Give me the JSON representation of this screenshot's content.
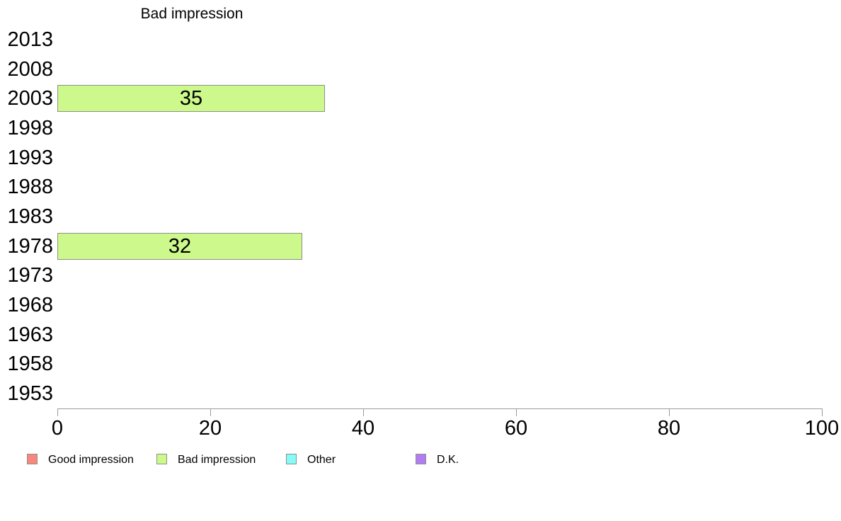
{
  "chart_data": {
    "type": "bar",
    "orientation": "horizontal",
    "title": "Bad impression",
    "categories": [
      "2013",
      "2008",
      "2003",
      "1998",
      "1993",
      "1988",
      "1983",
      "1978",
      "1973",
      "1968",
      "1963",
      "1958",
      "1953"
    ],
    "series": [
      {
        "name": "Bad impression",
        "color": "#ccf88c",
        "values": [
          null,
          null,
          35,
          null,
          null,
          null,
          null,
          32,
          null,
          null,
          null,
          null,
          null
        ]
      }
    ],
    "bar_labels_visible": true,
    "xlabel": "",
    "ylabel": "",
    "xlim": [
      0,
      100
    ],
    "x_ticks": [
      0,
      20,
      40,
      60,
      80,
      100
    ],
    "grid": false,
    "legend": {
      "position": "bottom",
      "entries": [
        {
          "label": "Good impression",
          "color": "#f8877d"
        },
        {
          "label": "Bad impression",
          "color": "#ccf88c"
        },
        {
          "label": "Other",
          "color": "#85fcf8"
        },
        {
          "label": "D.K.",
          "color": "#b07df2"
        }
      ]
    },
    "colors": {
      "bar_border": "#8f9089",
      "axis": "#9b9b9b",
      "text": "#000000",
      "background": "#ffffff"
    }
  }
}
